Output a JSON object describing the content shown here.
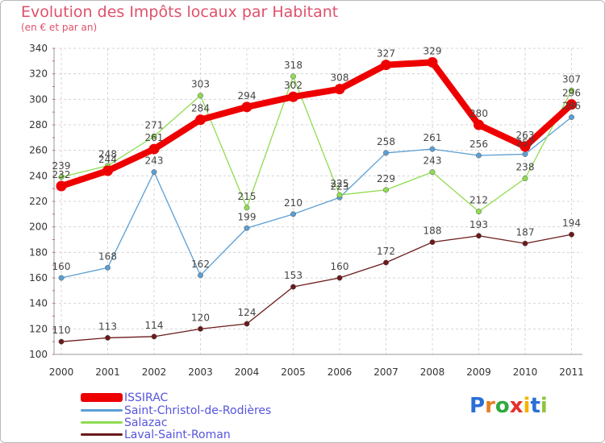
{
  "header": {
    "title": "Evolution des Impôts locaux par Habitant",
    "subtitle": "(en € et par an)"
  },
  "chart_data": {
    "type": "line",
    "title": "Evolution des Impôts locaux par Habitant",
    "subtitle": "(en € et par an)",
    "x": [
      "2000",
      "2001",
      "2002",
      "2003",
      "2004",
      "2005",
      "2006",
      "2007",
      "2008",
      "2009",
      "2010",
      "2011"
    ],
    "ylim": [
      100,
      340
    ],
    "yticks": [
      100,
      120,
      140,
      160,
      180,
      200,
      220,
      240,
      260,
      280,
      300,
      320,
      340
    ],
    "grid": true,
    "legend_position": "bottom-left",
    "series": [
      {
        "name": "Laval-Saint-Roman",
        "color": "#6b1a1a",
        "values": [
          110,
          113,
          114,
          120,
          124,
          153,
          160,
          172,
          188,
          193,
          187,
          194
        ]
      },
      {
        "name": "Saint-Christol-de-Rodières",
        "color": "#5b9fd4",
        "values": [
          160,
          168,
          243,
          162,
          199,
          210,
          223,
          258,
          261,
          256,
          257,
          286
        ]
      },
      {
        "name": "Salazac",
        "color": "#8fdc50",
        "values": [
          239,
          248,
          271,
          303,
          215,
          318,
          225,
          229,
          243,
          212,
          238,
          307
        ]
      },
      {
        "name": "ISSIRAC",
        "color": "#ee0000",
        "values": [
          232,
          244,
          261,
          284,
          294,
          302,
          308,
          327,
          329,
          280,
          263,
          296
        ]
      }
    ]
  },
  "legend": [
    {
      "label": "ISSIRAC",
      "color": "#ee0000"
    },
    {
      "label": "Saint-Christol-de-Rodières",
      "color": "#5b9fd4"
    },
    {
      "label": "Salazac",
      "color": "#8fdc50"
    },
    {
      "label": "Laval-Saint-Roman",
      "color": "#6b1a1a"
    }
  ],
  "logo": {
    "text": "Proxiti",
    "letter_colors": [
      "#2a6fd6",
      "#e67e22",
      "#2eaa3e",
      "#e5312d",
      "#f0b400",
      "#2a6fd6",
      "#8fc43f"
    ]
  }
}
